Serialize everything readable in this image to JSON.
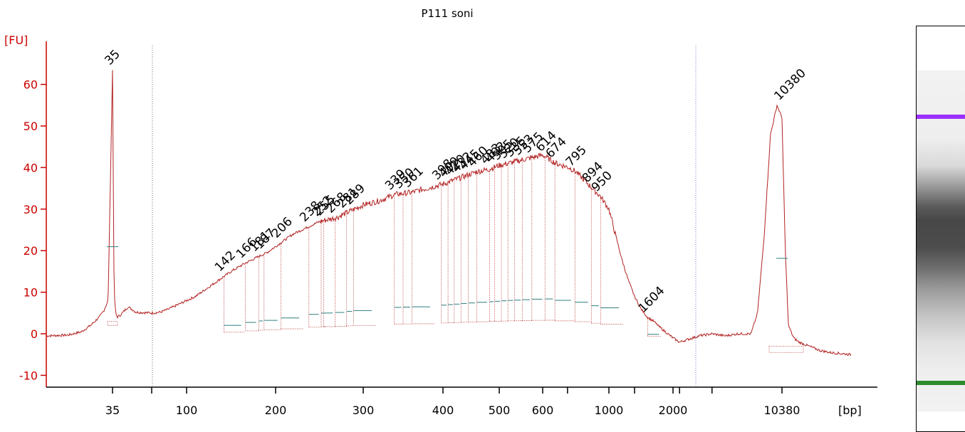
{
  "chart_data": {
    "type": "line",
    "title": "P111 soni",
    "ylabel": "[FU]",
    "xlabel": "[bp]",
    "ylim": [
      -12,
      70
    ],
    "yticks": [
      -10,
      0,
      10,
      20,
      30,
      40,
      50,
      60
    ],
    "xtick_labels": [
      "35",
      "100",
      "200",
      "300",
      "400",
      "500",
      "600",
      "1000",
      "2000",
      "10380"
    ],
    "xtick_positions": [
      35,
      100,
      200,
      300,
      400,
      500,
      600,
      1000,
      2000,
      10380
    ],
    "colors": {
      "axis": "#cc0000",
      "trace": "#b22222",
      "marker_lower": "#2e8b2e",
      "marker_upper": "#9b30ff",
      "bin": "#2f7f7f"
    },
    "markers": [
      {
        "label": "35",
        "color": "#2e8b2e",
        "bp": 35,
        "peak": 63.5
      },
      {
        "label": "10380",
        "color": "#9b30ff",
        "bp": 10380,
        "peak": 55
      }
    ],
    "series": [
      {
        "x": [
          20,
          25,
          28,
          30,
          32,
          33,
          34,
          35,
          36,
          37,
          38,
          40,
          45,
          50,
          60,
          70,
          80,
          90,
          100,
          110,
          120,
          130,
          140,
          150,
          166,
          180,
          190,
          200,
          210,
          220,
          230,
          240,
          250,
          260,
          270,
          280,
          290,
          300,
          320,
          340,
          360,
          380,
          400,
          420,
          440,
          460,
          480,
          500,
          520,
          540,
          560,
          580,
          600,
          640,
          680,
          720,
          760,
          800,
          850,
          900,
          950,
          1000,
          1100,
          1200,
          1300,
          1400,
          1500,
          1600,
          1700,
          1800,
          2000,
          2500,
          3000,
          4000,
          5000,
          6000,
          7000,
          8000,
          8500,
          9000,
          9500,
          10000,
          10380,
          10700,
          11000,
          11500,
          12000,
          13000,
          14000,
          15000,
          17000
        ],
        "y": [
          -0.5,
          -0.3,
          0.5,
          2,
          4,
          5.5,
          8,
          63.5,
          10,
          5,
          4,
          4.5,
          6.5,
          5.2,
          5,
          5.2,
          6,
          7,
          8,
          9,
          10.5,
          12,
          13.5,
          15,
          17,
          18.5,
          19.5,
          21,
          22.5,
          24,
          25,
          26,
          27,
          27.5,
          28,
          29,
          30,
          31,
          32,
          33.5,
          34,
          35,
          36,
          37,
          38,
          39,
          39.5,
          40.5,
          41,
          41.5,
          42,
          42.5,
          43,
          42,
          41,
          40.5,
          40,
          39,
          37,
          35,
          33,
          30,
          24,
          18,
          13,
          9,
          6,
          4,
          3,
          1.5,
          -1,
          -2,
          -1.5,
          -0.5,
          0,
          -0.5,
          0,
          0,
          5,
          23,
          48,
          55,
          52,
          20,
          2,
          -1,
          -2,
          -3,
          -4,
          -4.5,
          -5
        ]
      }
    ],
    "peak_labels": [
      {
        "label": "142",
        "bp": 142
      },
      {
        "label": "166",
        "bp": 166
      },
      {
        "label": "181",
        "bp": 181
      },
      {
        "label": "187",
        "bp": 187
      },
      {
        "label": "206",
        "bp": 206
      },
      {
        "label": "238",
        "bp": 238
      },
      {
        "label": "252",
        "bp": 252
      },
      {
        "label": "255",
        "bp": 255
      },
      {
        "label": "268",
        "bp": 268
      },
      {
        "label": "281",
        "bp": 281
      },
      {
        "label": "289",
        "bp": 289
      },
      {
        "label": "339",
        "bp": 339
      },
      {
        "label": "350",
        "bp": 350
      },
      {
        "label": "361",
        "bp": 361
      },
      {
        "label": "398",
        "bp": 398
      },
      {
        "label": "409",
        "bp": 409
      },
      {
        "label": "420",
        "bp": 420
      },
      {
        "label": "432",
        "bp": 432
      },
      {
        "label": "445",
        "bp": 445
      },
      {
        "label": "460",
        "bp": 460
      },
      {
        "label": "483",
        "bp": 483
      },
      {
        "label": "492",
        "bp": 492
      },
      {
        "label": "505",
        "bp": 505
      },
      {
        "label": "520",
        "bp": 520
      },
      {
        "label": "535",
        "bp": 535
      },
      {
        "label": "553",
        "bp": 553
      },
      {
        "label": "575",
        "bp": 575
      },
      {
        "label": "614",
        "bp": 614
      },
      {
        "label": "674",
        "bp": 674
      },
      {
        "label": "795",
        "bp": 795
      },
      {
        "label": "894",
        "bp": 894
      },
      {
        "label": "950",
        "bp": 950
      },
      {
        "label": "1604",
        "bp": 1604
      }
    ]
  }
}
